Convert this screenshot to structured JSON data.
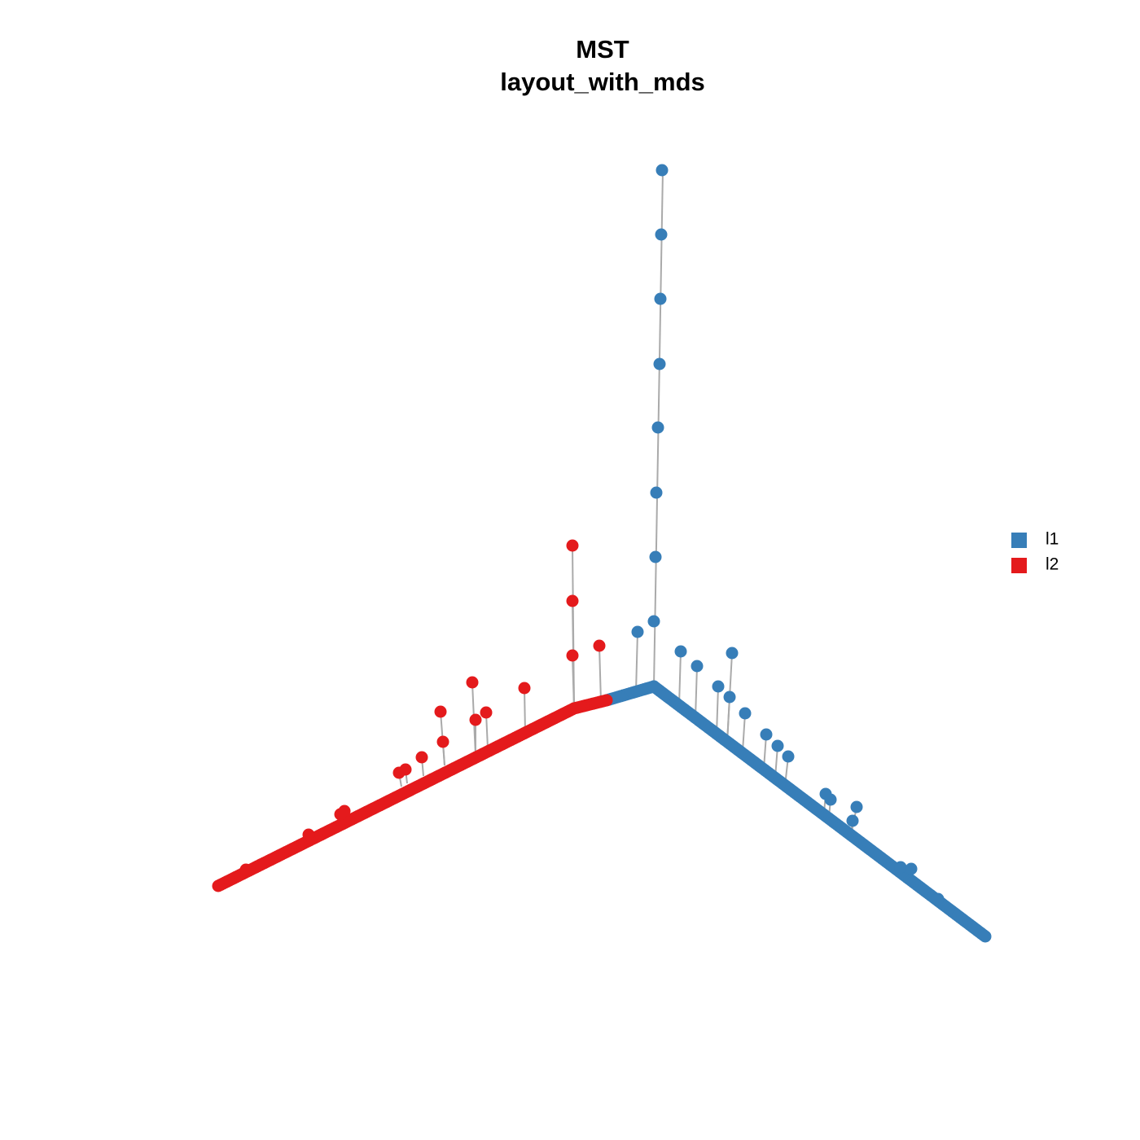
{
  "title": {
    "line1": "MST",
    "line2": "layout_with_mds"
  },
  "legend": [
    {
      "label": "l1",
      "color": "#377eb8"
    },
    {
      "label": "l2",
      "color": "#e41a1c"
    }
  ]
}
